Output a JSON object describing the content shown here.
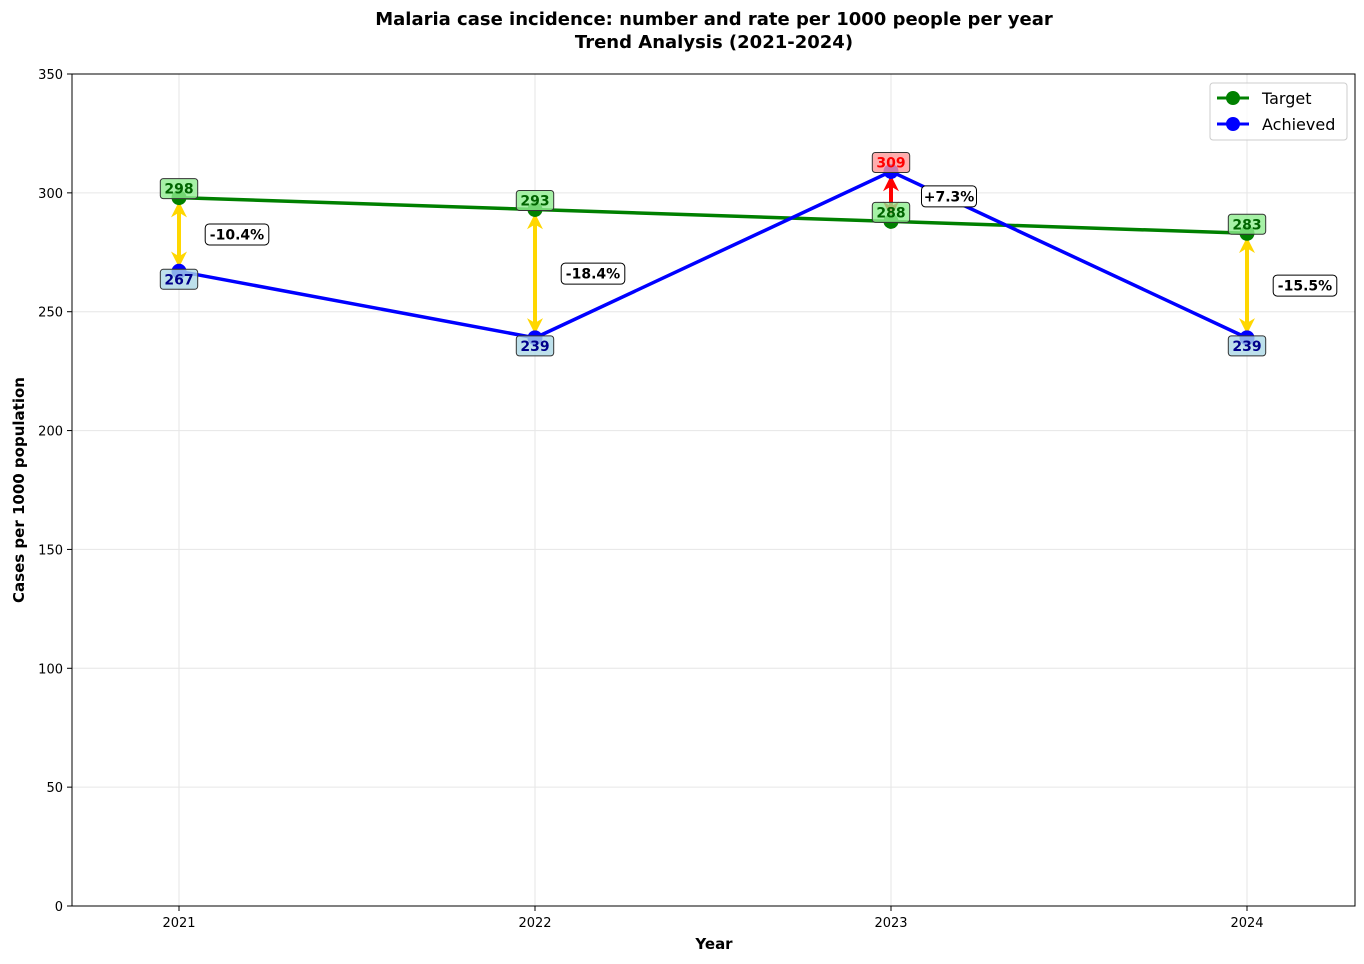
{
  "chart_data": {
    "type": "line",
    "title": "Malaria case incidence: number and rate per 1000 people per year",
    "subtitle": "Trend Analysis (2021-2024)",
    "xlabel": "Year",
    "ylabel": "Cases per 1000 population",
    "categories": [
      "2021",
      "2022",
      "2023",
      "2024"
    ],
    "ylim": [
      0,
      350
    ],
    "yticks": [
      0,
      50,
      100,
      150,
      200,
      250,
      300,
      350
    ],
    "grid": true,
    "legend_position": "top-right",
    "series": [
      {
        "name": "Target",
        "values": [
          298,
          293,
          288,
          283
        ],
        "color": "#008000",
        "label_bg": "#90ee90",
        "label_color": "#006400"
      },
      {
        "name": "Achieved",
        "values": [
          267,
          239,
          309,
          239
        ],
        "color": "#0000ff",
        "label_bg": "#add8e6",
        "label_color": "#00008b"
      }
    ],
    "deviation_labels": [
      "-10.4%",
      "-18.4%",
      "+7.3%",
      "-15.5%"
    ],
    "colors": {
      "below_target_arrow": "#ffd700",
      "above_target_arrow": "#ff0000",
      "above_target_label_bg": "#ff9999",
      "above_target_label_text": "#ff0000",
      "grid": "#e6e6e6"
    }
  }
}
